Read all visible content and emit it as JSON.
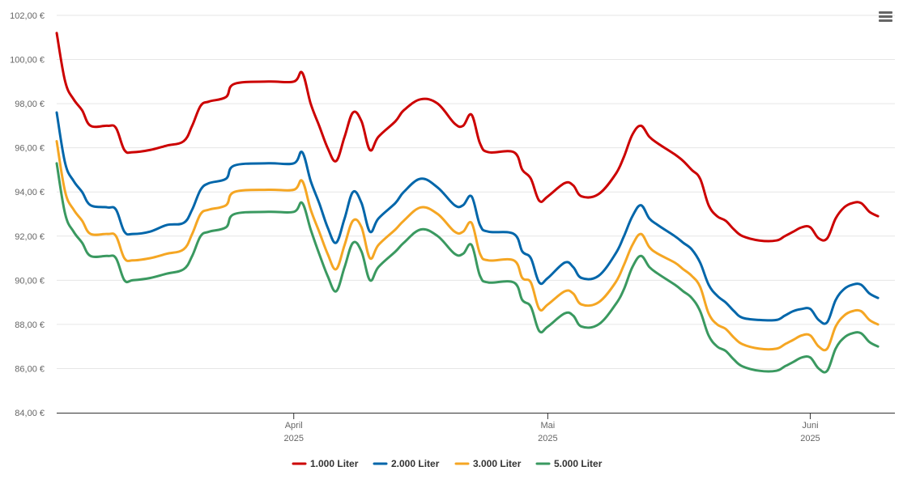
{
  "chart_data": {
    "type": "line",
    "title": "",
    "xlabel": "",
    "ylabel": "",
    "ylim": [
      84,
      102
    ],
    "y_ticks": [
      "84,00 €",
      "86,00 €",
      "88,00 €",
      "90,00 €",
      "92,00 €",
      "94,00 €",
      "96,00 €",
      "98,00 €",
      "100,00 €",
      "102,00 €"
    ],
    "x_ticks": [
      {
        "month": "April",
        "year": "2025",
        "day": 29
      },
      {
        "month": "Mai",
        "year": "2025",
        "day": 59
      },
      {
        "month": "Juni",
        "year": "2025",
        "day": 90
      }
    ],
    "x_range": [
      1,
      100
    ],
    "grid": true,
    "legend_position": "bottom-center",
    "series": [
      {
        "name": "1.000 Liter",
        "color": "#cc0000",
        "points": [
          [
            1,
            101.2
          ],
          [
            2,
            99.0
          ],
          [
            3,
            98.2
          ],
          [
            4,
            97.7
          ],
          [
            5,
            97.0
          ],
          [
            7,
            97.0
          ],
          [
            8,
            96.9
          ],
          [
            9,
            95.9
          ],
          [
            10,
            95.8
          ],
          [
            12,
            95.9
          ],
          [
            14,
            96.1
          ],
          [
            16,
            96.3
          ],
          [
            17,
            97.0
          ],
          [
            18,
            97.9
          ],
          [
            19,
            98.1
          ],
          [
            21,
            98.3
          ],
          [
            22,
            98.9
          ],
          [
            26,
            99.0
          ],
          [
            29,
            99.0
          ],
          [
            30,
            99.4
          ],
          [
            31,
            98.0
          ],
          [
            32,
            97.0
          ],
          [
            33,
            96.0
          ],
          [
            34,
            95.4
          ],
          [
            35,
            96.5
          ],
          [
            36,
            97.6
          ],
          [
            37,
            97.2
          ],
          [
            38,
            95.9
          ],
          [
            39,
            96.5
          ],
          [
            41,
            97.2
          ],
          [
            42,
            97.7
          ],
          [
            44,
            98.2
          ],
          [
            46,
            98.0
          ],
          [
            48,
            97.1
          ],
          [
            49,
            97.0
          ],
          [
            50,
            97.5
          ],
          [
            51,
            96.2
          ],
          [
            52,
            95.8
          ],
          [
            55,
            95.8
          ],
          [
            56,
            95.0
          ],
          [
            57,
            94.6
          ],
          [
            58,
            93.6
          ],
          [
            59,
            93.8
          ],
          [
            61,
            94.4
          ],
          [
            62,
            94.3
          ],
          [
            63,
            93.8
          ],
          [
            65,
            93.9
          ],
          [
            67,
            94.8
          ],
          [
            68,
            95.6
          ],
          [
            69,
            96.6
          ],
          [
            70,
            97.0
          ],
          [
            71,
            96.5
          ],
          [
            72,
            96.2
          ],
          [
            74,
            95.7
          ],
          [
            75,
            95.4
          ],
          [
            76,
            95.0
          ],
          [
            77,
            94.6
          ],
          [
            78,
            93.4
          ],
          [
            79,
            92.9
          ],
          [
            80,
            92.7
          ],
          [
            81,
            92.3
          ],
          [
            82,
            92.0
          ],
          [
            84,
            91.8
          ],
          [
            86,
            91.8
          ],
          [
            87,
            92.0
          ],
          [
            88,
            92.2
          ],
          [
            89,
            92.4
          ],
          [
            90,
            92.4
          ],
          [
            91,
            91.9
          ],
          [
            92,
            91.9
          ],
          [
            93,
            92.8
          ],
          [
            94,
            93.3
          ],
          [
            95,
            93.5
          ],
          [
            96,
            93.5
          ],
          [
            97,
            93.1
          ],
          [
            98,
            92.9
          ]
        ]
      },
      {
        "name": "2.000 Liter",
        "color": "#0066aa",
        "points": [
          [
            1,
            97.6
          ],
          [
            2,
            95.3
          ],
          [
            3,
            94.5
          ],
          [
            4,
            94.0
          ],
          [
            5,
            93.4
          ],
          [
            7,
            93.3
          ],
          [
            8,
            93.2
          ],
          [
            9,
            92.2
          ],
          [
            10,
            92.1
          ],
          [
            12,
            92.2
          ],
          [
            14,
            92.5
          ],
          [
            16,
            92.6
          ],
          [
            17,
            93.2
          ],
          [
            18,
            94.1
          ],
          [
            19,
            94.4
          ],
          [
            21,
            94.6
          ],
          [
            22,
            95.2
          ],
          [
            26,
            95.3
          ],
          [
            29,
            95.3
          ],
          [
            30,
            95.8
          ],
          [
            31,
            94.5
          ],
          [
            32,
            93.5
          ],
          [
            33,
            92.4
          ],
          [
            34,
            91.7
          ],
          [
            35,
            92.8
          ],
          [
            36,
            94.0
          ],
          [
            37,
            93.5
          ],
          [
            38,
            92.2
          ],
          [
            39,
            92.8
          ],
          [
            41,
            93.5
          ],
          [
            42,
            94.0
          ],
          [
            44,
            94.6
          ],
          [
            46,
            94.2
          ],
          [
            48,
            93.4
          ],
          [
            49,
            93.4
          ],
          [
            50,
            93.8
          ],
          [
            51,
            92.5
          ],
          [
            52,
            92.2
          ],
          [
            55,
            92.1
          ],
          [
            56,
            91.3
          ],
          [
            57,
            91.0
          ],
          [
            58,
            89.9
          ],
          [
            59,
            90.1
          ],
          [
            61,
            90.8
          ],
          [
            62,
            90.6
          ],
          [
            63,
            90.1
          ],
          [
            65,
            90.2
          ],
          [
            67,
            91.2
          ],
          [
            68,
            92.0
          ],
          [
            69,
            92.9
          ],
          [
            70,
            93.4
          ],
          [
            71,
            92.8
          ],
          [
            72,
            92.5
          ],
          [
            74,
            92.0
          ],
          [
            75,
            91.7
          ],
          [
            76,
            91.4
          ],
          [
            77,
            90.8
          ],
          [
            78,
            89.8
          ],
          [
            79,
            89.3
          ],
          [
            80,
            89.0
          ],
          [
            81,
            88.6
          ],
          [
            82,
            88.3
          ],
          [
            84,
            88.2
          ],
          [
            86,
            88.2
          ],
          [
            87,
            88.4
          ],
          [
            88,
            88.6
          ],
          [
            89,
            88.7
          ],
          [
            90,
            88.7
          ],
          [
            91,
            88.2
          ],
          [
            92,
            88.1
          ],
          [
            93,
            89.1
          ],
          [
            94,
            89.6
          ],
          [
            95,
            89.8
          ],
          [
            96,
            89.8
          ],
          [
            97,
            89.4
          ],
          [
            98,
            89.2
          ]
        ]
      },
      {
        "name": "3.000 Liter",
        "color": "#f5a623",
        "points": [
          [
            1,
            96.3
          ],
          [
            2,
            94.0
          ],
          [
            3,
            93.2
          ],
          [
            4,
            92.7
          ],
          [
            5,
            92.1
          ],
          [
            7,
            92.1
          ],
          [
            8,
            92.0
          ],
          [
            9,
            91.0
          ],
          [
            10,
            90.9
          ],
          [
            12,
            91.0
          ],
          [
            14,
            91.2
          ],
          [
            16,
            91.4
          ],
          [
            17,
            92.1
          ],
          [
            18,
            93.0
          ],
          [
            19,
            93.2
          ],
          [
            21,
            93.4
          ],
          [
            22,
            94.0
          ],
          [
            26,
            94.1
          ],
          [
            29,
            94.1
          ],
          [
            30,
            94.5
          ],
          [
            31,
            93.2
          ],
          [
            32,
            92.2
          ],
          [
            33,
            91.2
          ],
          [
            34,
            90.5
          ],
          [
            35,
            91.6
          ],
          [
            36,
            92.7
          ],
          [
            37,
            92.4
          ],
          [
            38,
            91.0
          ],
          [
            39,
            91.6
          ],
          [
            41,
            92.3
          ],
          [
            42,
            92.7
          ],
          [
            44,
            93.3
          ],
          [
            46,
            93.0
          ],
          [
            48,
            92.2
          ],
          [
            49,
            92.2
          ],
          [
            50,
            92.6
          ],
          [
            51,
            91.2
          ],
          [
            52,
            90.9
          ],
          [
            55,
            90.9
          ],
          [
            56,
            90.1
          ],
          [
            57,
            89.9
          ],
          [
            58,
            88.7
          ],
          [
            59,
            88.9
          ],
          [
            61,
            89.5
          ],
          [
            62,
            89.4
          ],
          [
            63,
            88.9
          ],
          [
            65,
            89.0
          ],
          [
            67,
            89.9
          ],
          [
            68,
            90.7
          ],
          [
            69,
            91.6
          ],
          [
            70,
            92.1
          ],
          [
            71,
            91.5
          ],
          [
            72,
            91.2
          ],
          [
            74,
            90.8
          ],
          [
            75,
            90.5
          ],
          [
            76,
            90.2
          ],
          [
            77,
            89.7
          ],
          [
            78,
            88.5
          ],
          [
            79,
            88.0
          ],
          [
            80,
            87.8
          ],
          [
            81,
            87.4
          ],
          [
            82,
            87.1
          ],
          [
            84,
            86.9
          ],
          [
            86,
            86.9
          ],
          [
            87,
            87.1
          ],
          [
            88,
            87.3
          ],
          [
            89,
            87.5
          ],
          [
            90,
            87.5
          ],
          [
            91,
            87.0
          ],
          [
            92,
            86.9
          ],
          [
            93,
            87.9
          ],
          [
            94,
            88.4
          ],
          [
            95,
            88.6
          ],
          [
            96,
            88.6
          ],
          [
            97,
            88.2
          ],
          [
            98,
            88.0
          ]
        ]
      },
      {
        "name": "5.000 Liter",
        "color": "#3a9960",
        "points": [
          [
            1,
            95.3
          ],
          [
            2,
            93.0
          ],
          [
            3,
            92.2
          ],
          [
            4,
            91.7
          ],
          [
            5,
            91.1
          ],
          [
            7,
            91.1
          ],
          [
            8,
            91.0
          ],
          [
            9,
            90.0
          ],
          [
            10,
            90.0
          ],
          [
            12,
            90.1
          ],
          [
            14,
            90.3
          ],
          [
            16,
            90.5
          ],
          [
            17,
            91.1
          ],
          [
            18,
            92.0
          ],
          [
            19,
            92.2
          ],
          [
            21,
            92.4
          ],
          [
            22,
            93.0
          ],
          [
            26,
            93.1
          ],
          [
            29,
            93.1
          ],
          [
            30,
            93.5
          ],
          [
            31,
            92.3
          ],
          [
            32,
            91.2
          ],
          [
            33,
            90.2
          ],
          [
            34,
            89.5
          ],
          [
            35,
            90.6
          ],
          [
            36,
            91.7
          ],
          [
            37,
            91.3
          ],
          [
            38,
            90.0
          ],
          [
            39,
            90.6
          ],
          [
            41,
            91.3
          ],
          [
            42,
            91.7
          ],
          [
            44,
            92.3
          ],
          [
            46,
            92.0
          ],
          [
            48,
            91.2
          ],
          [
            49,
            91.2
          ],
          [
            50,
            91.6
          ],
          [
            51,
            90.2
          ],
          [
            52,
            89.9
          ],
          [
            55,
            89.9
          ],
          [
            56,
            89.1
          ],
          [
            57,
            88.8
          ],
          [
            58,
            87.7
          ],
          [
            59,
            87.9
          ],
          [
            61,
            88.5
          ],
          [
            62,
            88.4
          ],
          [
            63,
            87.9
          ],
          [
            65,
            88.0
          ],
          [
            67,
            88.9
          ],
          [
            68,
            89.6
          ],
          [
            69,
            90.6
          ],
          [
            70,
            91.1
          ],
          [
            71,
            90.6
          ],
          [
            72,
            90.3
          ],
          [
            74,
            89.8
          ],
          [
            75,
            89.5
          ],
          [
            76,
            89.2
          ],
          [
            77,
            88.6
          ],
          [
            78,
            87.5
          ],
          [
            79,
            87.0
          ],
          [
            80,
            86.8
          ],
          [
            81,
            86.4
          ],
          [
            82,
            86.1
          ],
          [
            84,
            85.9
          ],
          [
            86,
            85.9
          ],
          [
            87,
            86.1
          ],
          [
            88,
            86.3
          ],
          [
            89,
            86.5
          ],
          [
            90,
            86.5
          ],
          [
            91,
            86.0
          ],
          [
            92,
            85.9
          ],
          [
            93,
            86.9
          ],
          [
            94,
            87.4
          ],
          [
            95,
            87.6
          ],
          [
            96,
            87.6
          ],
          [
            97,
            87.2
          ],
          [
            98,
            87.0
          ]
        ]
      }
    ]
  },
  "ui": {
    "menu_icon": "hamburger-menu-icon"
  }
}
